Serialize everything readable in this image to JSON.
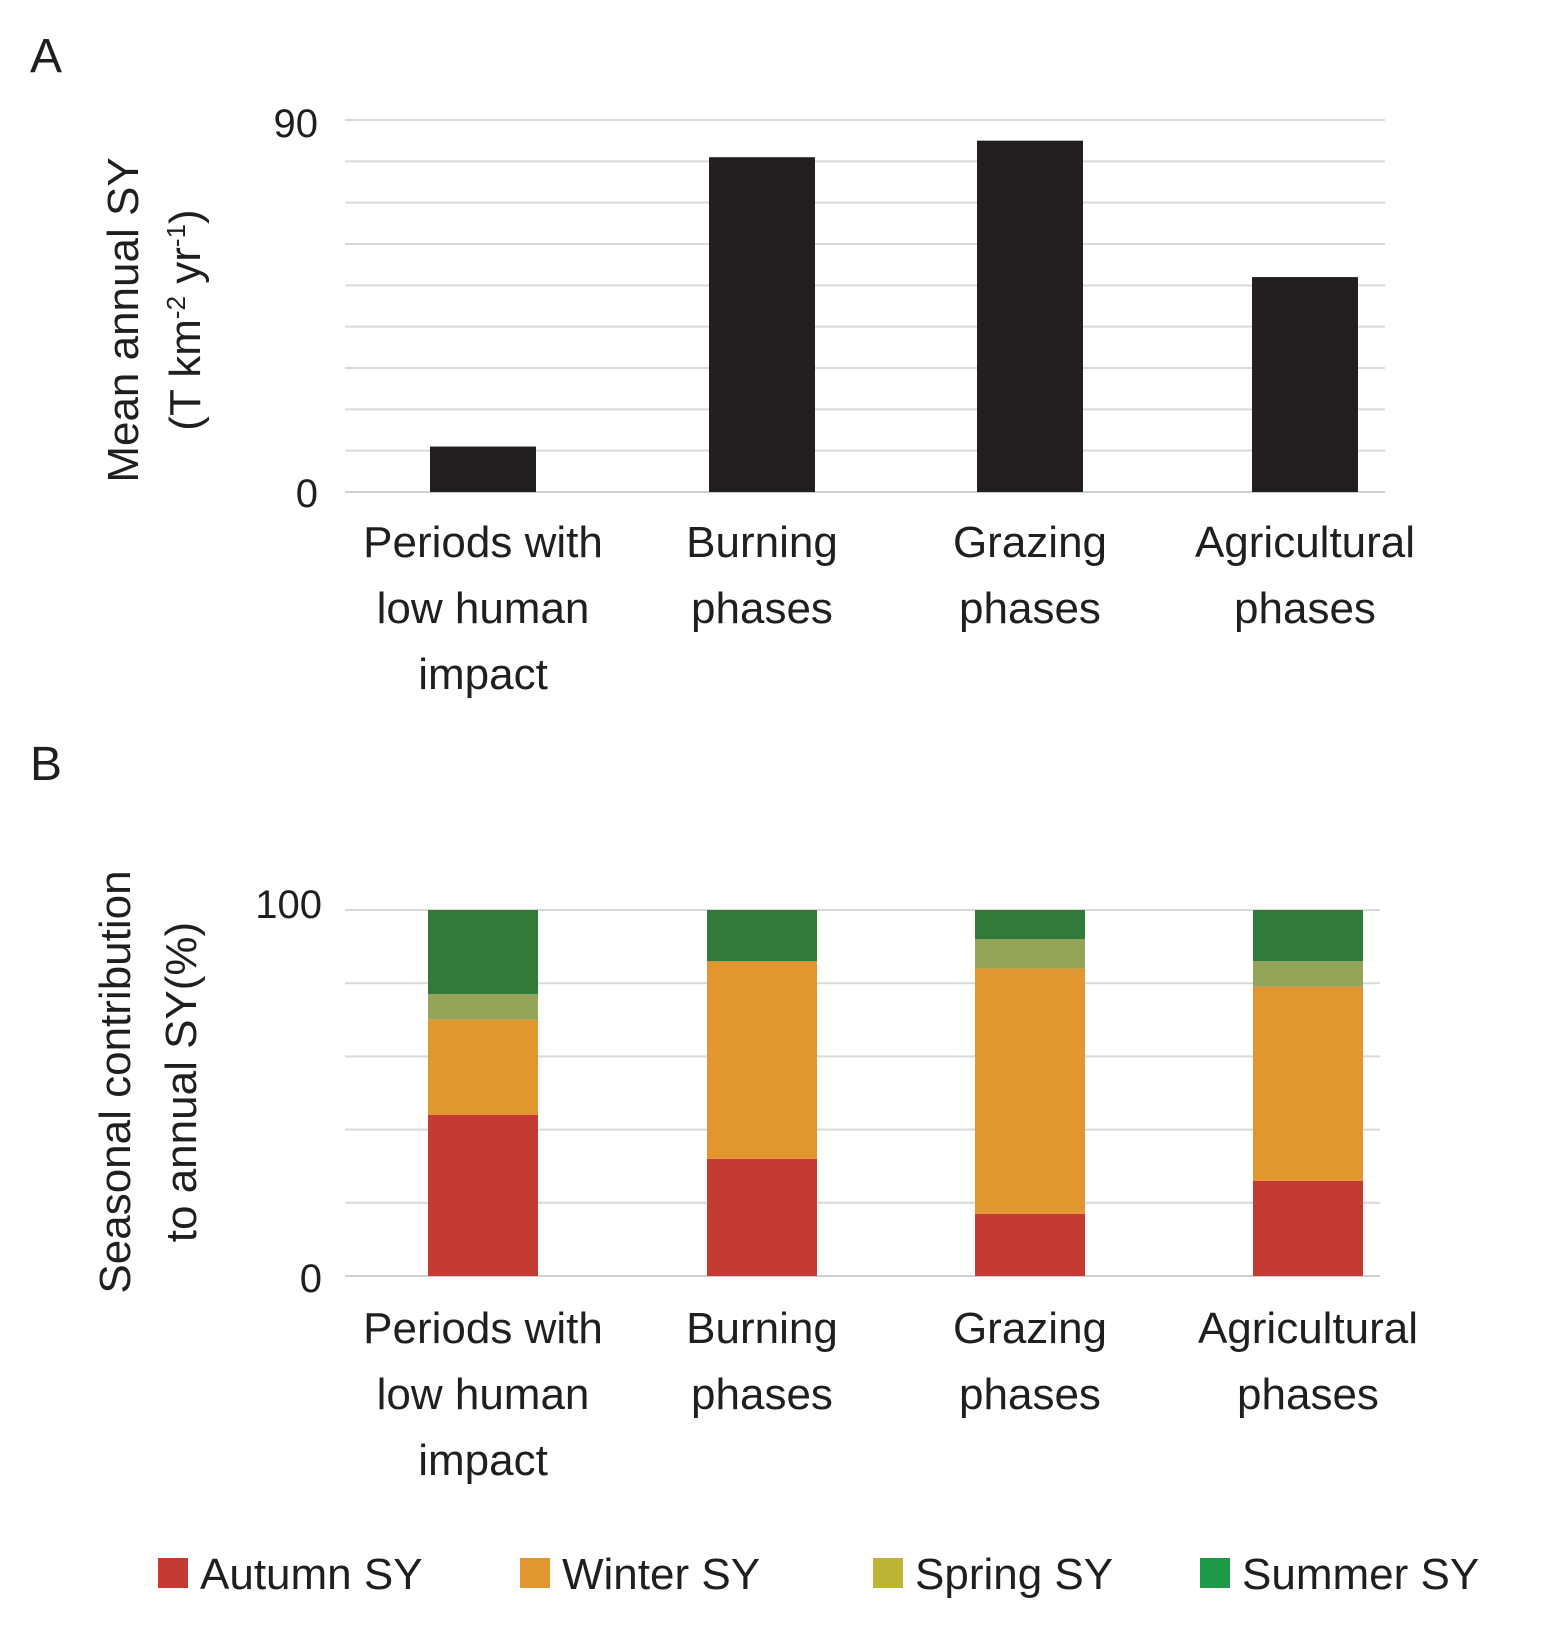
{
  "chart_data": [
    {
      "panel": "A",
      "type": "bar",
      "ylabel_lines": [
        "Mean annual SY",
        "(T km",
        "-2",
        " yr",
        "-1",
        ")"
      ],
      "yticks": [
        "0",
        "90"
      ],
      "ylim": [
        0,
        90
      ],
      "grid": true,
      "categories": [
        [
          "Periods with",
          "low human",
          "impact"
        ],
        [
          "Burning",
          "phases"
        ],
        [
          "Grazing",
          "phases"
        ],
        [
          "Agricultural",
          "phases"
        ]
      ],
      "values": [
        11,
        81,
        85,
        52
      ],
      "bar_color": "#231f20"
    },
    {
      "panel": "B",
      "type": "stacked-bar",
      "ylabel_lines": [
        "Seasonal contribution",
        "to annual SY(%)"
      ],
      "yticks": [
        "0",
        "100"
      ],
      "ylim": [
        0,
        100
      ],
      "grid": true,
      "categories": [
        [
          "Periods with",
          "low human",
          "impact"
        ],
        [
          "Burning",
          "phases"
        ],
        [
          "Grazing",
          "phases"
        ],
        [
          "Agricultural",
          "phases"
        ]
      ],
      "series": [
        {
          "name": "Autumn SY",
          "color": "#c53a32",
          "values": [
            44,
            32,
            17,
            26
          ]
        },
        {
          "name": "Winter SY",
          "color": "#e2962f",
          "values": [
            26,
            54,
            67,
            53
          ]
        },
        {
          "name": "Spring SY",
          "color": "#94a55a",
          "values": [
            7,
            0,
            8,
            7
          ]
        },
        {
          "name": "Summer SY",
          "color": "#317a3a",
          "values": [
            23,
            14,
            8,
            14
          ]
        }
      ],
      "legend": {
        "placement": "bottom",
        "items": [
          {
            "label": "Autumn SY",
            "color": "#c53a32"
          },
          {
            "label": "Winter SY",
            "color": "#e2962f"
          },
          {
            "label": "Spring SY",
            "color": "#bcb534"
          },
          {
            "label": "Summer SY",
            "color": "#1d9a48"
          }
        ]
      }
    }
  ]
}
